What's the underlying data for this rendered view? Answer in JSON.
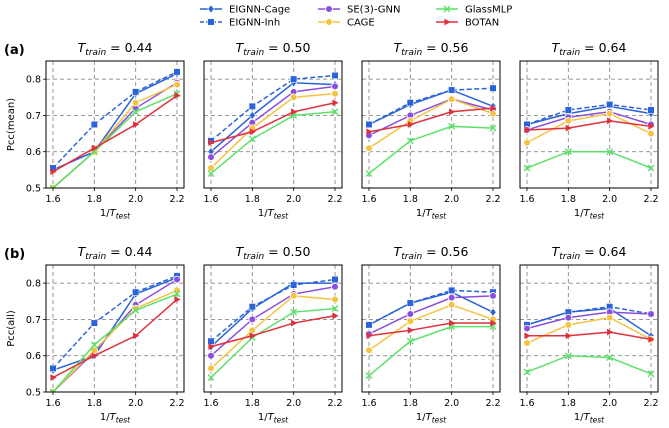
{
  "legend": [
    {
      "name": "EIGNN-Cage",
      "color": "#2b63d9",
      "dash": "solid",
      "marker": "diamond"
    },
    {
      "name": "EIGNN-Inh",
      "color": "#2b63d9",
      "dash": "dashed",
      "marker": "square"
    },
    {
      "name": "SE(3)-GNN",
      "color": "#8a4fe0",
      "dash": "solid",
      "marker": "circle"
    },
    {
      "name": "CAGE",
      "color": "#f5c342",
      "dash": "solid",
      "marker": "circle"
    },
    {
      "name": "GlassMLP",
      "color": "#5de06a",
      "dash": "solid",
      "marker": "x"
    },
    {
      "name": "BOTAN",
      "color": "#e0303c",
      "dash": "solid",
      "marker": "triangle-right"
    }
  ],
  "chart_data": [
    {
      "type": "line",
      "row_label": "(a)",
      "ylabel": "Pcc(mean)",
      "xlabel": "1/T_test",
      "x": [
        1.6,
        1.8,
        2.0,
        2.2
      ],
      "xticks": [
        "1.6",
        "1.8",
        "2.0",
        "2.2"
      ],
      "ylim": [
        0.5,
        0.85
      ],
      "yticks": [
        "0.5",
        "0.6",
        "0.7",
        "0.8"
      ],
      "grid": true,
      "panels": [
        {
          "title": "T_train = 0.44",
          "series": {
            "EIGNN-Cage": [
              0.55,
              0.6,
              0.76,
              0.815
            ],
            "EIGNN-Inh": [
              0.555,
              0.675,
              0.765,
              0.82
            ],
            "SE(3)-GNN": [
              0.5,
              0.6,
              0.72,
              0.79
            ],
            "CAGE": [
              0.5,
              0.6,
              0.735,
              0.785
            ],
            "GlassMLP": [
              0.5,
              0.6,
              0.71,
              0.76
            ],
            "BOTAN": [
              0.545,
              0.61,
              0.675,
              0.755
            ]
          }
        },
        {
          "title": "T_train = 0.50",
          "series": {
            "EIGNN-Cage": [
              0.6,
              0.7,
              0.79,
              0.785
            ],
            "EIGNN-Inh": [
              0.63,
              0.725,
              0.8,
              0.81
            ],
            "SE(3)-GNN": [
              0.585,
              0.68,
              0.765,
              0.78
            ],
            "CAGE": [
              0.555,
              0.665,
              0.75,
              0.76
            ],
            "GlassMLP": [
              0.54,
              0.635,
              0.7,
              0.71
            ],
            "BOTAN": [
              0.625,
              0.655,
              0.71,
              0.735
            ]
          }
        },
        {
          "title": "T_train = 0.56",
          "series": {
            "EIGNN-Cage": [
              0.675,
              0.73,
              0.77,
              0.725
            ],
            "EIGNN-Inh": [
              0.675,
              0.735,
              0.77,
              0.775
            ],
            "SE(3)-GNN": [
              0.645,
              0.7,
              0.745,
              0.715
            ],
            "CAGE": [
              0.61,
              0.685,
              0.745,
              0.705
            ],
            "GlassMLP": [
              0.54,
              0.63,
              0.67,
              0.665
            ],
            "BOTAN": [
              0.655,
              0.675,
              0.71,
              0.72
            ]
          }
        },
        {
          "title": "T_train = 0.64",
          "series": {
            "EIGNN-Cage": [
              0.675,
              0.705,
              0.725,
              0.705
            ],
            "EIGNN-Inh": [
              0.675,
              0.715,
              0.73,
              0.715
            ],
            "SE(3)-GNN": [
              0.66,
              0.695,
              0.71,
              0.675
            ],
            "CAGE": [
              0.625,
              0.685,
              0.705,
              0.65
            ],
            "GlassMLP": [
              0.555,
              0.6,
              0.6,
              0.555
            ],
            "BOTAN": [
              0.66,
              0.665,
              0.685,
              0.67
            ]
          }
        }
      ]
    },
    {
      "type": "line",
      "row_label": "(b)",
      "ylabel": "Pcc(all)",
      "xlabel": "1/T_test",
      "x": [
        1.6,
        1.8,
        2.0,
        2.2
      ],
      "xticks": [
        "1.6",
        "1.8",
        "2.0",
        "2.2"
      ],
      "ylim": [
        0.5,
        0.85
      ],
      "yticks": [
        "0.5",
        "0.6",
        "0.7",
        "0.8"
      ],
      "grid": true,
      "panels": [
        {
          "title": "T_train = 0.44",
          "series": {
            "EIGNN-Cage": [
              0.56,
              0.6,
              0.77,
              0.815
            ],
            "EIGNN-Inh": [
              0.565,
              0.69,
              0.775,
              0.82
            ],
            "SE(3)-GNN": [
              0.5,
              0.61,
              0.74,
              0.81
            ],
            "CAGE": [
              0.5,
              0.615,
              0.73,
              0.78
            ],
            "GlassMLP": [
              0.5,
              0.63,
              0.725,
              0.77
            ],
            "BOTAN": [
              0.54,
              0.6,
              0.655,
              0.755
            ]
          }
        },
        {
          "title": "T_train = 0.50",
          "series": {
            "EIGNN-Cage": [
              0.625,
              0.73,
              0.8,
              0.8
            ],
            "EIGNN-Inh": [
              0.64,
              0.735,
              0.795,
              0.81
            ],
            "SE(3)-GNN": [
              0.6,
              0.7,
              0.77,
              0.79
            ],
            "CAGE": [
              0.565,
              0.67,
              0.765,
              0.755
            ],
            "GlassMLP": [
              0.54,
              0.65,
              0.72,
              0.73
            ],
            "BOTAN": [
              0.625,
              0.655,
              0.69,
              0.71
            ]
          }
        },
        {
          "title": "T_train = 0.56",
          "series": {
            "EIGNN-Cage": [
              0.685,
              0.745,
              0.775,
              0.72
            ],
            "EIGNN-Inh": [
              0.685,
              0.745,
              0.78,
              0.775
            ],
            "SE(3)-GNN": [
              0.66,
              0.715,
              0.76,
              0.765
            ],
            "CAGE": [
              0.615,
              0.695,
              0.74,
              0.7
            ],
            "GlassMLP": [
              0.545,
              0.64,
              0.68,
              0.68
            ],
            "BOTAN": [
              0.655,
              0.67,
              0.69,
              0.69
            ]
          }
        },
        {
          "title": "T_train = 0.64",
          "series": {
            "EIGNN-Cage": [
              0.685,
              0.72,
              0.73,
              0.655
            ],
            "EIGNN-Inh": [
              0.685,
              0.72,
              0.735,
              0.715
            ],
            "SE(3)-GNN": [
              0.675,
              0.705,
              0.72,
              0.715
            ],
            "CAGE": [
              0.635,
              0.685,
              0.705,
              0.645
            ],
            "GlassMLP": [
              0.555,
              0.6,
              0.595,
              0.55
            ],
            "BOTAN": [
              0.655,
              0.655,
              0.665,
              0.645
            ]
          }
        }
      ]
    }
  ]
}
